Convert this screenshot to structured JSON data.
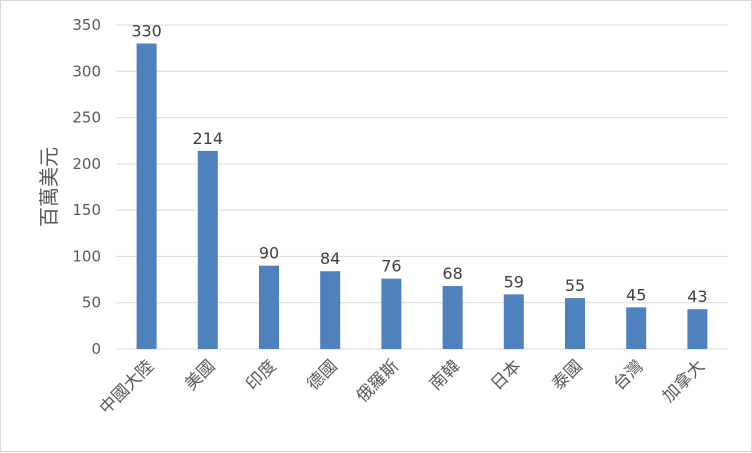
{
  "chart_data": {
    "type": "bar",
    "categories": [
      "中國大陸",
      "美國",
      "印度",
      "德國",
      "俄羅斯",
      "南韓",
      "日本",
      "泰國",
      "台灣",
      "加拿大"
    ],
    "values": [
      330,
      214,
      90,
      84,
      76,
      68,
      59,
      55,
      45,
      43
    ],
    "title": "",
    "xlabel": "",
    "ylabel": "百萬美元",
    "ylim": [
      0,
      350
    ],
    "yticks": [
      0,
      50,
      100,
      150,
      200,
      250,
      300,
      350
    ],
    "grid": true,
    "legend": "none",
    "bar_color": "#4f81bd",
    "grid_color": "#d9d9d9"
  }
}
